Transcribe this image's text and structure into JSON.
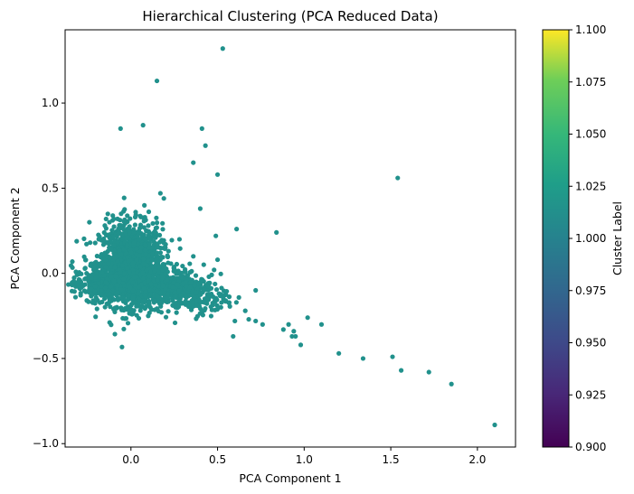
{
  "chart_data": {
    "type": "scatter",
    "title": "Hierarchical Clustering (PCA Reduced Data)",
    "xlabel": "PCA Component 1",
    "ylabel": "PCA Component 2",
    "xlim": [
      -0.38,
      2.22
    ],
    "ylim": [
      -1.02,
      1.43
    ],
    "xticks": [
      {
        "value": 0.0,
        "label": "0.0"
      },
      {
        "value": 0.5,
        "label": "0.5"
      },
      {
        "value": 1.0,
        "label": "1.0"
      },
      {
        "value": 1.5,
        "label": "1.5"
      },
      {
        "value": 2.0,
        "label": "2.0"
      }
    ],
    "yticks": [
      {
        "value": -1.0,
        "label": "−1.0"
      },
      {
        "value": -0.5,
        "label": "−0.5"
      },
      {
        "value": 0.0,
        "label": "0.0"
      },
      {
        "value": 0.5,
        "label": "0.5"
      },
      {
        "value": 1.0,
        "label": "1.0"
      }
    ],
    "point_color": "#21918c",
    "grid": false,
    "colorbar": {
      "label": "Cluster Label",
      "colormap": "viridis",
      "range": [
        0.9,
        1.1
      ],
      "ticks": [
        {
          "value": 0.9,
          "label": "0.900"
        },
        {
          "value": 0.925,
          "label": "0.925"
        },
        {
          "value": 0.95,
          "label": "0.950"
        },
        {
          "value": 0.975,
          "label": "0.975"
        },
        {
          "value": 1.0,
          "label": "1.000"
        },
        {
          "value": 1.025,
          "label": "1.025"
        },
        {
          "value": 1.05,
          "label": "1.050"
        },
        {
          "value": 1.075,
          "label": "1.075"
        },
        {
          "value": 1.1,
          "label": "1.100"
        }
      ]
    },
    "points": [
      {
        "x": 0.53,
        "y": 1.32
      },
      {
        "x": 0.15,
        "y": 1.13
      },
      {
        "x": 0.07,
        "y": 0.87
      },
      {
        "x": -0.06,
        "y": 0.85
      },
      {
        "x": 0.41,
        "y": 0.85
      },
      {
        "x": 0.43,
        "y": 0.75
      },
      {
        "x": 0.36,
        "y": 0.65
      },
      {
        "x": 0.5,
        "y": 0.58
      },
      {
        "x": 1.54,
        "y": 0.56
      },
      {
        "x": 0.4,
        "y": 0.38
      },
      {
        "x": 0.61,
        "y": 0.26
      },
      {
        "x": 0.84,
        "y": 0.24
      },
      {
        "x": 0.49,
        "y": 0.22
      },
      {
        "x": 0.17,
        "y": 0.47
      },
      {
        "x": 0.19,
        "y": 0.44
      },
      {
        "x": -0.24,
        "y": 0.3
      },
      {
        "x": 0.28,
        "y": 0.2
      },
      {
        "x": 0.36,
        "y": 0.1
      },
      {
        "x": 0.5,
        "y": 0.08
      },
      {
        "x": 0.48,
        "y": 0.02
      },
      {
        "x": 0.45,
        "y": -0.02
      },
      {
        "x": -0.32,
        "y": -0.14
      },
      {
        "x": 0.72,
        "y": -0.1
      },
      {
        "x": 0.66,
        "y": -0.22
      },
      {
        "x": 0.6,
        "y": -0.28
      },
      {
        "x": 0.68,
        "y": -0.27
      },
      {
        "x": 0.72,
        "y": -0.28
      },
      {
        "x": 0.76,
        "y": -0.3
      },
      {
        "x": 0.88,
        "y": -0.33
      },
      {
        "x": 0.91,
        "y": -0.3
      },
      {
        "x": 0.94,
        "y": -0.34
      },
      {
        "x": 0.95,
        "y": -0.37
      },
      {
        "x": 0.93,
        "y": -0.37
      },
      {
        "x": 0.98,
        "y": -0.42
      },
      {
        "x": 1.02,
        "y": -0.26
      },
      {
        "x": 1.1,
        "y": -0.3
      },
      {
        "x": 0.59,
        "y": -0.37
      },
      {
        "x": 1.2,
        "y": -0.47
      },
      {
        "x": 1.34,
        "y": -0.5
      },
      {
        "x": 1.51,
        "y": -0.49
      },
      {
        "x": 1.56,
        "y": -0.57
      },
      {
        "x": 1.72,
        "y": -0.58
      },
      {
        "x": 1.85,
        "y": -0.65
      },
      {
        "x": 2.1,
        "y": -0.89
      }
    ],
    "dense_clusters": [
      {
        "cx": 0.0,
        "cy": 0.05,
        "sx": 0.09,
        "sy": 0.12,
        "count": 1500
      },
      {
        "cx": 0.18,
        "cy": -0.07,
        "sx": 0.12,
        "sy": 0.06,
        "count": 450
      },
      {
        "cx": 0.36,
        "cy": -0.14,
        "sx": 0.1,
        "sy": 0.05,
        "count": 180
      },
      {
        "cx": -0.18,
        "cy": -0.06,
        "sx": 0.08,
        "sy": 0.05,
        "count": 260
      }
    ]
  }
}
